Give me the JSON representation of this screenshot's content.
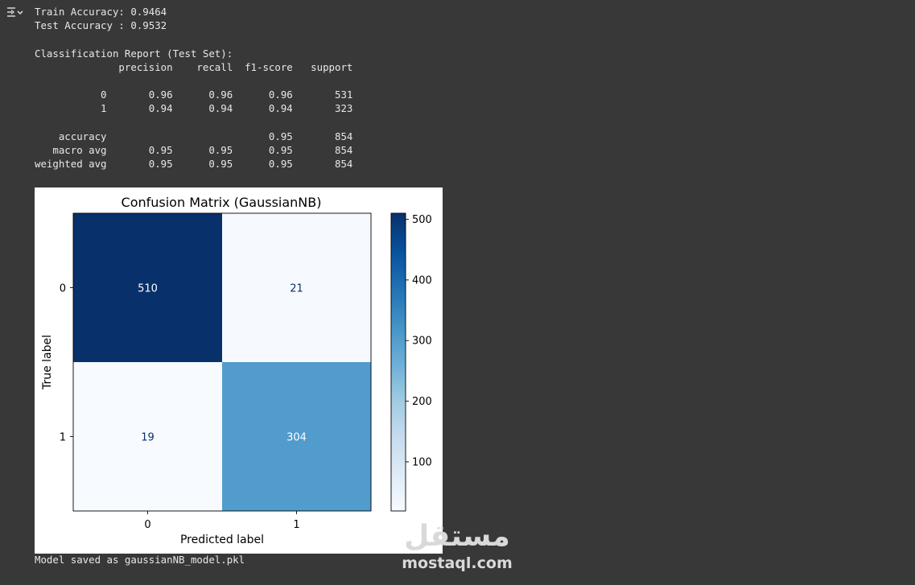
{
  "console": {
    "train_accuracy": "Train Accuracy: 0.9464",
    "test_accuracy": "Test Accuracy : 0.9532",
    "report_title": "Classification Report (Test Set):",
    "report_header": "              precision    recall  f1-score   support",
    "report_rows": [
      "           0       0.96      0.96      0.96       531",
      "           1       0.94      0.94      0.94       323",
      "    accuracy                           0.95       854",
      "   macro avg       0.95      0.95      0.95       854",
      "weighted avg       0.95      0.95      0.95       854"
    ],
    "saved_message": "Model saved as gaussianNB_model.pkl"
  },
  "icons": {
    "output_toggle": "output-expand-icon"
  },
  "colors": {
    "background": "#383838",
    "text": "#e8e8e8",
    "cmap_low": "#f7fbff",
    "cmap_high": "#08306b"
  },
  "watermark": {
    "logo": "مستقل",
    "text": "mostaql.com"
  },
  "chart_data": {
    "type": "heatmap",
    "title": "Confusion Matrix (GaussianNB)",
    "xlabel": "Predicted label",
    "ylabel": "True label",
    "x_ticks": [
      "0",
      "1"
    ],
    "y_ticks": [
      "0",
      "1"
    ],
    "matrix": [
      [
        510,
        21
      ],
      [
        19,
        304
      ]
    ],
    "colorbar": {
      "ticks": [
        "100",
        "200",
        "300",
        "400",
        "500"
      ],
      "min": 19,
      "max": 510,
      "cmap": "Blues"
    },
    "grid": false
  }
}
